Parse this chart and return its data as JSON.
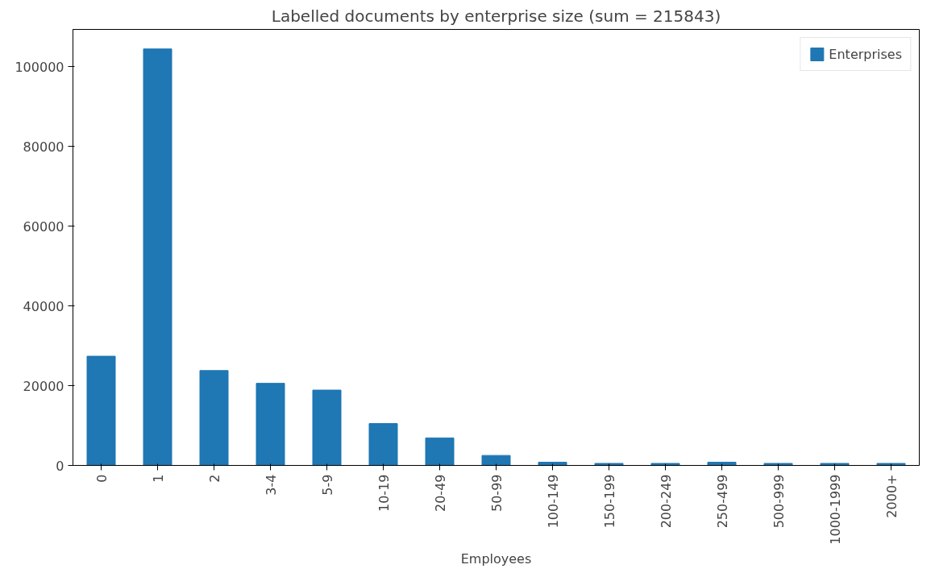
{
  "chart_data": {
    "type": "bar",
    "title": "Labelled documents by enterprise size (sum = 215843)",
    "xlabel": "Employees",
    "categories": [
      "0",
      "1",
      "2",
      "3-4",
      "5-9",
      "10-19",
      "20-49",
      "50-99",
      "100-149",
      "150-199",
      "200-249",
      "250-499",
      "500-999",
      "1000-1999",
      "2000+"
    ],
    "series": [
      {
        "name": "Enterprises",
        "color": "#1f77b4",
        "values": [
          27400,
          104500,
          23800,
          20600,
          18900,
          10500,
          6900,
          2500,
          800,
          500,
          500,
          800,
          500,
          500,
          500
        ]
      }
    ],
    "ylim": [
      0,
      109400
    ],
    "yticks": [
      0,
      20000,
      40000,
      60000,
      80000,
      100000
    ],
    "grid": false,
    "legend": "top right"
  }
}
